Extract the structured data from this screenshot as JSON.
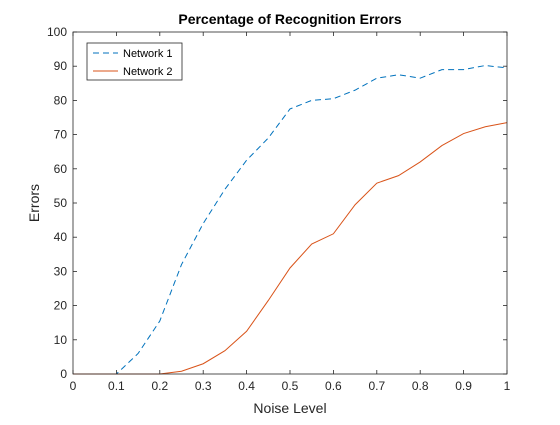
{
  "chart_data": {
    "type": "line",
    "title": "Percentage of Recognition Errors",
    "xlabel": "Noise Level",
    "ylabel": "Errors",
    "xlim": [
      0,
      1
    ],
    "ylim": [
      0,
      100
    ],
    "xticks": [
      "0",
      "0.1",
      "0.2",
      "0.3",
      "0.4",
      "0.5",
      "0.6",
      "0.7",
      "0.8",
      "0.9",
      "1"
    ],
    "yticks": [
      "0",
      "10",
      "20",
      "30",
      "40",
      "50",
      "60",
      "70",
      "80",
      "90",
      "100"
    ],
    "grid": false,
    "legend_position": "top-left",
    "x": [
      0,
      0.05,
      0.1,
      0.15,
      0.2,
      0.25,
      0.3,
      0.35,
      0.4,
      0.45,
      0.5,
      0.55,
      0.6,
      0.65,
      0.7,
      0.75,
      0.8,
      0.85,
      0.9,
      0.95,
      1.0
    ],
    "series": [
      {
        "name": "Network 1",
        "color": "#0072BD",
        "line_style": "dashed",
        "values": [
          0,
          0,
          0,
          6,
          15.5,
          32,
          44,
          54,
          62.5,
          69,
          77.5,
          80,
          80.5,
          83,
          86.5,
          87.5,
          86.5,
          89,
          89,
          90.2,
          89.5
        ]
      },
      {
        "name": "Network 2",
        "color": "#D95319",
        "line_style": "solid",
        "values": [
          0,
          0,
          0,
          0,
          0,
          0.8,
          3,
          6.8,
          12.5,
          21.5,
          31,
          38,
          41,
          49.5,
          55.8,
          58,
          62,
          66.8,
          70.3,
          72.3,
          73.5
        ]
      }
    ]
  }
}
